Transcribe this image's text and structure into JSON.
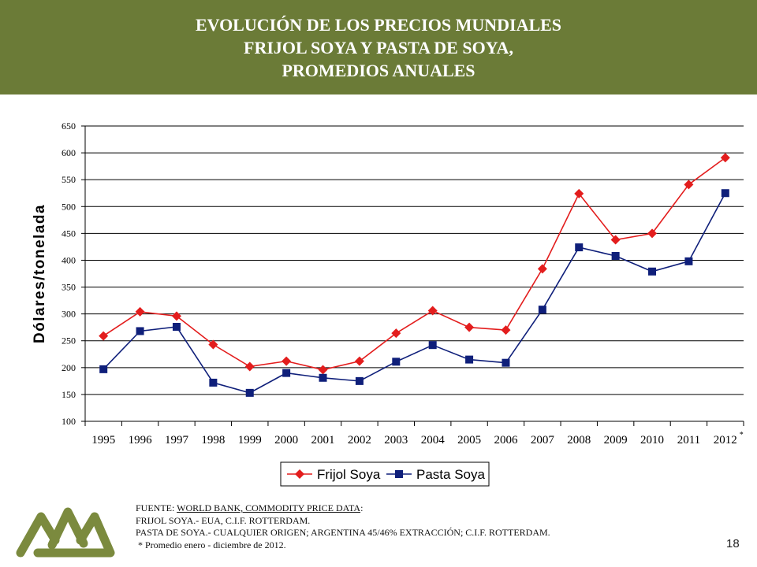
{
  "header": {
    "title_line1": "EVOLUCIÓN DE LOS PRECIOS MUNDIALES",
    "title_line2": "FRIJOL SOYA Y PASTA DE SOYA,",
    "title_line3": "PROMEDIOS ANUALES"
  },
  "source": {
    "prefix": "FUENTE: ",
    "link": "WORLD BANK, COMMODITY PRICE DATA",
    "suffix": ":",
    "line2": "FRIJOL SOYA.- EUA, C.I.F. ROTTERDAM.",
    "line3": "PASTA DE SOYA.- CUALQUIER ORIGEN; ARGENTINA 45/46% EXTRACCIÓN; C.I.F. ROTTERDAM.",
    "line4": "* Promedio enero - diciembre de 2012."
  },
  "page_number": "18",
  "colors": {
    "header_bg": "#6b7b37",
    "frijol": "#e31d1d",
    "pasta": "#0f1f7a",
    "logo": "#7b8a3e"
  },
  "chart_data": {
    "type": "line",
    "title": "",
    "xlabel": "",
    "ylabel": "Dólares/tonelada",
    "categories": [
      "1995",
      "1996",
      "1997",
      "1998",
      "1999",
      "2000",
      "2001",
      "2002",
      "2003",
      "2004",
      "2005",
      "2006",
      "2007",
      "2008",
      "2009",
      "2010",
      "2011",
      "2012"
    ],
    "asterisk_category": "2012",
    "ylim": [
      100,
      650
    ],
    "yticks": [
      100,
      150,
      200,
      250,
      300,
      350,
      400,
      450,
      500,
      550,
      600,
      650
    ],
    "grid": true,
    "legend_position": "bottom-center",
    "series": [
      {
        "name": "Frijol Soya",
        "marker": "diamond",
        "color": "#e31d1d",
        "values": [
          259,
          304,
          296,
          243,
          202,
          212,
          196,
          212,
          264,
          306,
          275,
          270,
          384,
          524,
          438,
          450,
          541,
          591
        ]
      },
      {
        "name": "Pasta Soya",
        "marker": "square",
        "color": "#0f1f7a",
        "values": [
          197,
          268,
          276,
          172,
          153,
          190,
          181,
          175,
          211,
          242,
          215,
          209,
          308,
          424,
          408,
          379,
          398,
          525
        ]
      }
    ]
  }
}
